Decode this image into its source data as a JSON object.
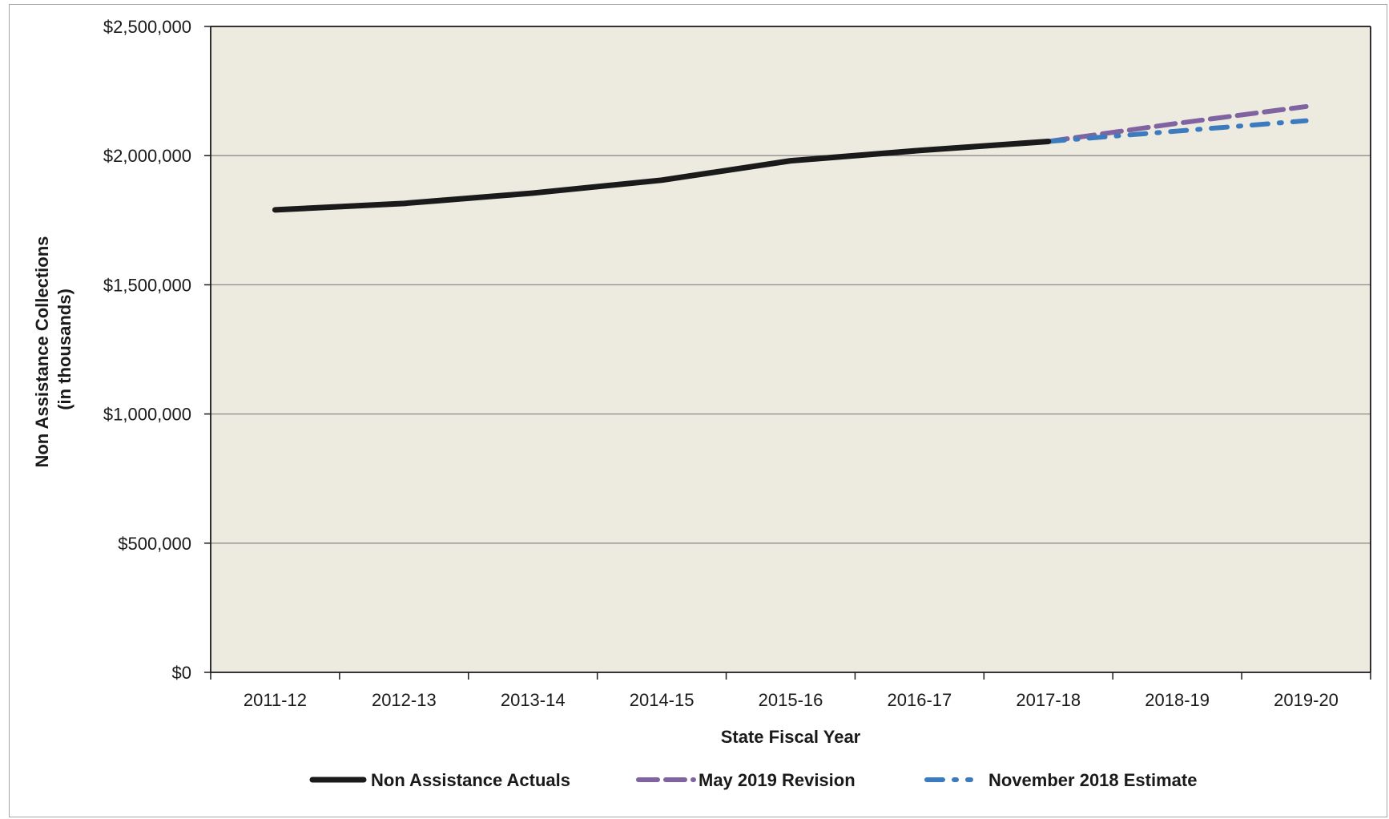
{
  "chart_data": {
    "type": "line",
    "title": "",
    "xlabel": "State Fiscal Year",
    "ylabel_line1": "Non Assistance Collections",
    "ylabel_line2": "(in thousands)",
    "ylim": [
      0,
      2500000
    ],
    "y_ticks": [
      0,
      500000,
      1000000,
      1500000,
      2000000,
      2500000
    ],
    "y_tick_labels": [
      "$0",
      "$500,000",
      "$1,000,000",
      "$1,500,000",
      "$2,000,000",
      "$2,500,000"
    ],
    "categories": [
      "2011-12",
      "2012-13",
      "2013-14",
      "2014-15",
      "2015-16",
      "2016-17",
      "2017-18",
      "2018-19",
      "2019-20"
    ],
    "grid": true,
    "legend_position": "bottom",
    "plot_background": "#edeae0",
    "series": [
      {
        "name": "Non Assistance Actuals",
        "color": "#1a1a1a",
        "style": "solid",
        "values": [
          1790000,
          1815000,
          1855000,
          1905000,
          1980000,
          2020000,
          2055000,
          null,
          null
        ]
      },
      {
        "name": "May 2019 Revision",
        "color": "#8064a2",
        "style": "dashed",
        "values": [
          null,
          null,
          null,
          null,
          null,
          null,
          2055000,
          2125000,
          2190000
        ]
      },
      {
        "name": "November 2018 Estimate",
        "color": "#3d7bbf",
        "style": "dash-dot",
        "values": [
          null,
          null,
          null,
          null,
          null,
          null,
          2055000,
          2095000,
          2135000
        ]
      }
    ]
  }
}
